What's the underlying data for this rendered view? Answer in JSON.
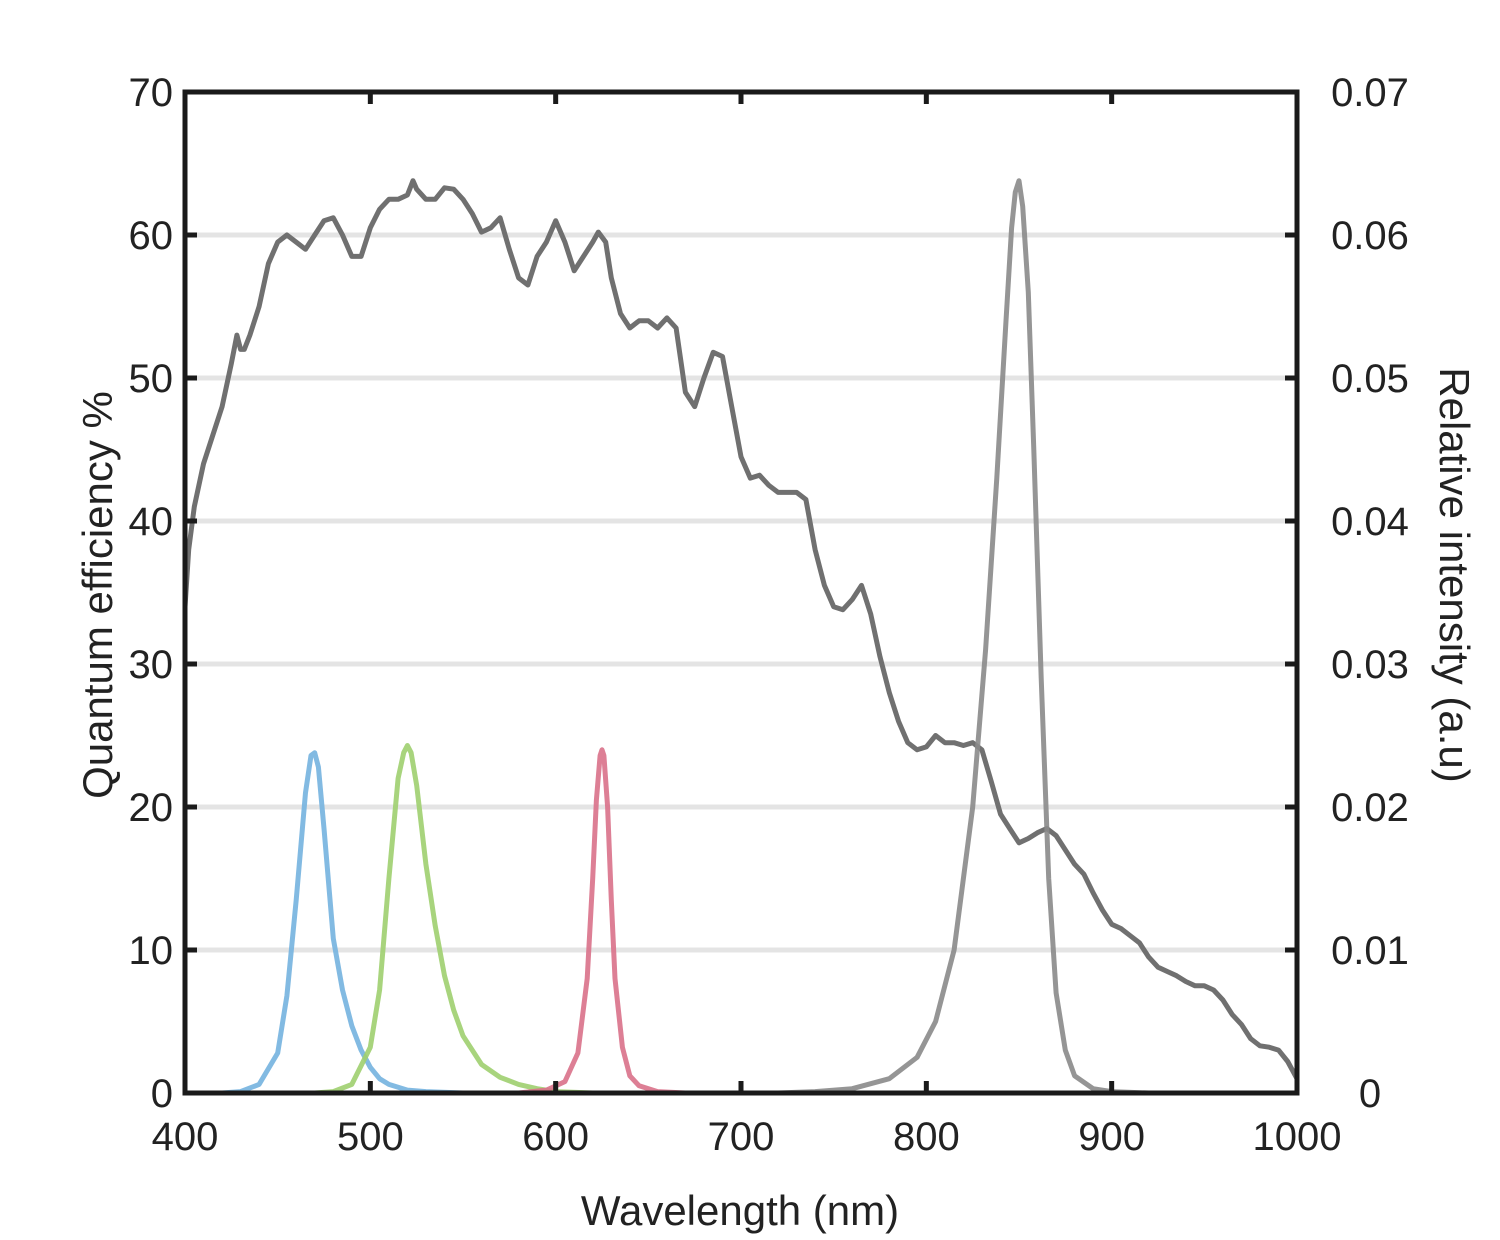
{
  "chart_data": {
    "type": "line",
    "title": "",
    "xlabel": "Wavelength (nm)",
    "ylabel": "Quantum efficiency %",
    "y2label": "Relative intensity (a.u)",
    "xlim": [
      400,
      1000
    ],
    "ylim": [
      0,
      70
    ],
    "y2lim": [
      0,
      0.07
    ],
    "x_ticks": [
      "400",
      "500",
      "600",
      "700",
      "800",
      "900",
      "1000"
    ],
    "y_ticks": [
      "0",
      "10",
      "20",
      "30",
      "40",
      "50",
      "60",
      "70"
    ],
    "y2_ticks": [
      "0",
      "0.01",
      "0.02",
      "0.03",
      "0.04",
      "0.05",
      "0.06",
      "0.07"
    ],
    "grid": "horizontal",
    "legend": "none",
    "series": [
      {
        "axis": "left",
        "color": "#707070",
        "x": [
          400,
          402,
          405,
          410,
          415,
          420,
          425,
          428,
          430,
          432,
          435,
          440,
          445,
          450,
          455,
          460,
          465,
          470,
          475,
          480,
          485,
          490,
          495,
          500,
          505,
          510,
          515,
          520,
          523,
          525,
          530,
          535,
          540,
          545,
          550,
          555,
          560,
          565,
          570,
          575,
          580,
          585,
          590,
          595,
          600,
          605,
          610,
          615,
          620,
          623,
          627,
          630,
          635,
          640,
          645,
          650,
          655,
          660,
          665,
          670,
          675,
          680,
          685,
          690,
          695,
          700,
          705,
          710,
          715,
          720,
          725,
          730,
          735,
          740,
          745,
          750,
          755,
          760,
          765,
          770,
          775,
          780,
          785,
          790,
          795,
          800,
          805,
          810,
          815,
          820,
          825,
          830,
          835,
          840,
          845,
          850,
          855,
          860,
          865,
          870,
          875,
          880,
          885,
          890,
          895,
          900,
          905,
          910,
          915,
          920,
          925,
          930,
          935,
          940,
          945,
          950,
          955,
          960,
          965,
          970,
          975,
          980,
          985,
          990,
          995,
          1000
        ],
        "y": [
          34,
          38,
          41,
          44,
          46,
          48,
          51,
          53,
          52,
          52,
          53,
          55,
          58,
          59.5,
          60,
          59.5,
          59,
          60,
          61,
          61.2,
          60,
          58.5,
          58.5,
          60.5,
          61.8,
          62.5,
          62.5,
          62.8,
          63.8,
          63.2,
          62.5,
          62.5,
          63.3,
          63.2,
          62.5,
          61.5,
          60.2,
          60.5,
          61.2,
          59,
          57,
          56.5,
          58.5,
          59.5,
          61,
          59.5,
          57.5,
          58.5,
          59.5,
          60.2,
          59.5,
          57,
          54.5,
          53.5,
          54,
          54,
          53.5,
          54.2,
          53.5,
          49,
          48,
          50,
          51.8,
          51.5,
          48,
          44.5,
          43,
          43.2,
          42.5,
          42,
          42,
          42,
          41.5,
          38,
          35.5,
          34,
          33.8,
          34.5,
          35.5,
          33.5,
          30.5,
          28,
          26,
          24.5,
          24,
          24.2,
          25,
          24.5,
          24.5,
          24.3,
          24.5,
          24,
          21.8,
          19.5,
          18.5,
          17.5,
          17.8,
          18.2,
          18.5,
          18,
          17,
          16,
          15.3,
          14,
          12.8,
          11.8,
          11.5,
          11,
          10.5,
          9.5,
          8.8,
          8.5,
          8.2,
          7.8,
          7.5,
          7.5,
          7.2,
          6.5,
          5.5,
          4.8,
          3.8,
          3.3,
          3.2,
          3.0,
          2.2,
          1.0
        ]
      },
      {
        "axis": "right",
        "color": "#74b3df",
        "x": [
          400,
          420,
          430,
          440,
          450,
          455,
          460,
          465,
          468,
          470,
          472,
          475,
          480,
          485,
          490,
          495,
          500,
          505,
          510,
          520,
          530,
          550,
          600,
          1000
        ],
        "y": [
          0,
          0,
          0.0001,
          0.0006,
          0.0028,
          0.0068,
          0.0135,
          0.021,
          0.0236,
          0.0238,
          0.0228,
          0.0185,
          0.0108,
          0.0072,
          0.0047,
          0.003,
          0.0018,
          0.001,
          0.0006,
          0.0002,
          0.0001,
          0,
          0,
          0
        ]
      },
      {
        "axis": "right",
        "color": "#9fcf6f",
        "x": [
          400,
          470,
          480,
          490,
          500,
          505,
          510,
          515,
          518,
          520,
          522,
          525,
          530,
          535,
          540,
          545,
          550,
          560,
          570,
          580,
          590,
          600,
          620,
          650,
          1000
        ],
        "y": [
          0,
          0,
          0.0001,
          0.0006,
          0.0032,
          0.0072,
          0.015,
          0.022,
          0.0238,
          0.0243,
          0.0238,
          0.0215,
          0.016,
          0.0117,
          0.0082,
          0.0058,
          0.004,
          0.002,
          0.0011,
          0.0006,
          0.0003,
          0.0001,
          0,
          0,
          0
        ]
      },
      {
        "axis": "right",
        "color": "#d9718a",
        "x": [
          400,
          580,
          595,
          605,
          612,
          617,
          620,
          622,
          624,
          625,
          626,
          628,
          630,
          632,
          636,
          640,
          645,
          655,
          670,
          1000
        ],
        "y": [
          0,
          0,
          0.0002,
          0.0008,
          0.0028,
          0.008,
          0.015,
          0.0205,
          0.0236,
          0.024,
          0.0236,
          0.02,
          0.0135,
          0.008,
          0.0032,
          0.0012,
          0.0005,
          0.0001,
          0,
          0
        ]
      },
      {
        "axis": "right",
        "color": "#8a8a8a",
        "x": [
          400,
          720,
          740,
          760,
          780,
          795,
          805,
          815,
          825,
          832,
          838,
          843,
          846,
          848,
          850,
          852,
          855,
          858,
          862,
          866,
          870,
          875,
          880,
          890,
          900,
          920,
          1000
        ],
        "y": [
          0,
          0,
          0.0001,
          0.0003,
          0.001,
          0.0025,
          0.005,
          0.01,
          0.02,
          0.031,
          0.043,
          0.054,
          0.0605,
          0.063,
          0.0638,
          0.062,
          0.056,
          0.045,
          0.029,
          0.015,
          0.007,
          0.003,
          0.0012,
          0.0003,
          0.0001,
          0,
          0
        ]
      },
      {
        "axis": "left",
        "color": "#7a1c2a",
        "x": [
          400,
          1000
        ],
        "y": [
          0,
          0
        ]
      }
    ]
  }
}
